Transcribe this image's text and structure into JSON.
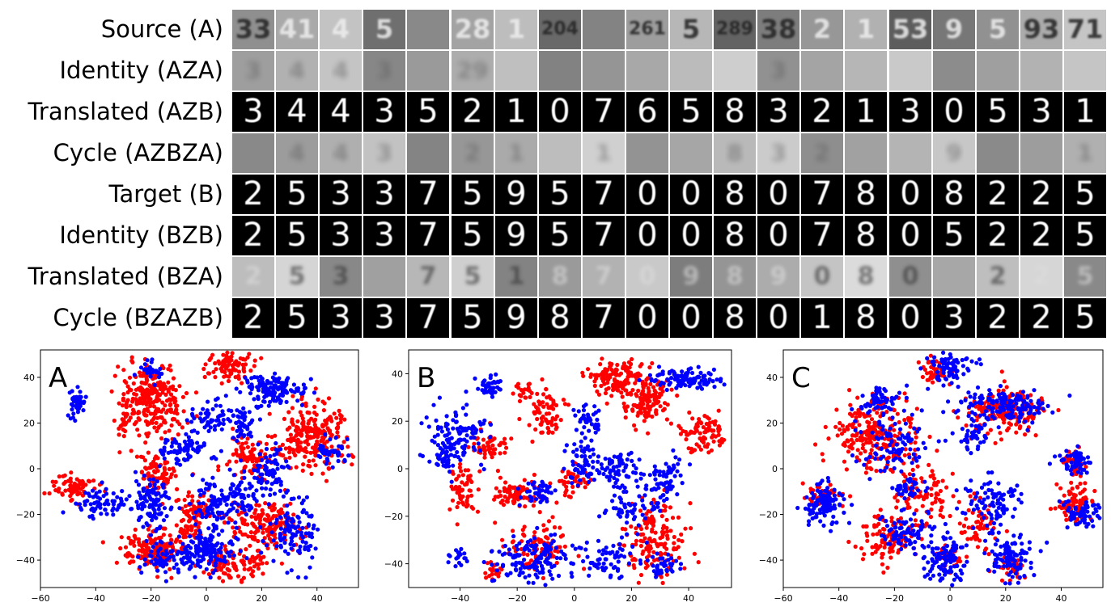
{
  "figure": {
    "rows": [
      {
        "key": "source_a",
        "label": "Source (A)",
        "style": "svhn",
        "digits": [
          "33",
          "41",
          "4",
          "5",
          "",
          "28",
          "1",
          "204",
          "",
          "261",
          "5",
          "289",
          "38",
          "2",
          "1",
          "53",
          "9",
          "5",
          "93",
          "71"
        ]
      },
      {
        "key": "identity_aza",
        "label": "Identity (AZA)",
        "style": "blur",
        "digits": [
          "3",
          "4",
          "4",
          "3",
          "",
          "29",
          "",
          "",
          "",
          "",
          "",
          "",
          "3",
          "",
          "",
          "",
          "",
          "",
          "",
          ""
        ]
      },
      {
        "key": "translated_azb",
        "label": "Translated (AZB)",
        "style": "mnist",
        "digits": [
          "3",
          "4",
          "4",
          "3",
          "5",
          "2",
          "1",
          "0",
          "7",
          "6",
          "5",
          "8",
          "3",
          "2",
          "1",
          "3",
          "0",
          "5",
          "3",
          "1"
        ]
      },
      {
        "key": "cycle_azbza",
        "label": "Cycle (AZBZA)",
        "style": "blur",
        "digits": [
          "",
          "4",
          "4",
          "3",
          "",
          "2",
          "1",
          "",
          "1",
          "",
          "",
          "8",
          "3",
          "2",
          "",
          "",
          "9",
          "",
          "",
          "1"
        ]
      },
      {
        "key": "target_b",
        "label": "Target (B)",
        "style": "mnist",
        "digits": [
          "2",
          "5",
          "3",
          "3",
          "7",
          "5",
          "9",
          "5",
          "7",
          "0",
          "0",
          "8",
          "0",
          "7",
          "8",
          "0",
          "8",
          "2",
          "2",
          "5"
        ]
      },
      {
        "key": "identity_bzb",
        "label": "Identity (BZB)",
        "style": "mnist",
        "digits": [
          "2",
          "5",
          "3",
          "3",
          "7",
          "5",
          "9",
          "5",
          "7",
          "0",
          "0",
          "8",
          "0",
          "7",
          "8",
          "0",
          "5",
          "2",
          "2",
          "5"
        ]
      },
      {
        "key": "translated_bza",
        "label": "Translated (BZA)",
        "style": "svhn_faded",
        "digits": [
          "2",
          "5",
          "3",
          "",
          "7",
          "5",
          "1",
          "8",
          "7",
          "0",
          "9",
          "8",
          "9",
          "0",
          "8",
          "0",
          "",
          "2",
          "2",
          "5"
        ]
      },
      {
        "key": "cycle_bzazb",
        "label": "Cycle (BZAZB)",
        "style": "mnist",
        "digits": [
          "2",
          "5",
          "3",
          "3",
          "7",
          "5",
          "9",
          "8",
          "7",
          "0",
          "0",
          "8",
          "0",
          "1",
          "8",
          "0",
          "3",
          "2",
          "2",
          "5"
        ]
      }
    ]
  },
  "chart_data": [
    {
      "type": "scatter",
      "title": "",
      "panel_label": "A",
      "xlim": [
        -60,
        55
      ],
      "ylim": [
        -52,
        52
      ],
      "xticks": [
        "−60",
        "−40",
        "−20",
        "0",
        "20",
        "40"
      ],
      "yticks": [
        "−40",
        "−20",
        "0",
        "20",
        "40"
      ],
      "xtick_values": [
        -60,
        -40,
        -20,
        0,
        20,
        40
      ],
      "ytick_values": [
        -40,
        -20,
        0,
        20,
        40
      ],
      "grid": false,
      "series": [
        {
          "color": "#ff0000",
          "clusters": [
            [
              -48,
              -8,
              4,
              3,
              70
            ],
            [
              -20,
              30,
              6,
              8,
              260
            ],
            [
              -18,
              -2,
              3,
              4,
              80
            ],
            [
              -20,
              -35,
              5,
              4,
              170
            ],
            [
              -5,
              -20,
              3,
              6,
              90
            ],
            [
              8,
              45,
              4,
              4,
              90
            ],
            [
              15,
              5,
              4,
              5,
              80
            ],
            [
              10,
              -42,
              6,
              4,
              100
            ],
            [
              22,
              -25,
              7,
              5,
              170
            ],
            [
              38,
              15,
              7,
              7,
              250
            ],
            [
              -28,
              20,
              2,
              3,
              20
            ]
          ]
        },
        {
          "color": "#0000ff",
          "clusters": [
            [
              -47,
              29,
              2,
              3,
              40
            ],
            [
              -38,
              -15,
              5,
              3,
              70
            ],
            [
              -20,
              43,
              2,
              2,
              30
            ],
            [
              -20,
              -15,
              3,
              6,
              100
            ],
            [
              -8,
              8,
              5,
              3,
              70
            ],
            [
              2,
              22,
              4,
              3,
              60
            ],
            [
              14,
              20,
              3,
              3,
              40
            ],
            [
              22,
              -2,
              4,
              5,
              80
            ],
            [
              0,
              -36,
              6,
              4,
              140
            ],
            [
              2,
              -15,
              4,
              6,
              80
            ],
            [
              25,
              35,
              6,
              3,
              130
            ],
            [
              32,
              -28,
              5,
              8,
              110
            ],
            [
              45,
              8,
              3,
              3,
              40
            ],
            [
              -15,
              -40,
              5,
              4,
              60
            ],
            [
              12,
              -12,
              5,
              5,
              50
            ]
          ]
        }
      ]
    },
    {
      "type": "scatter",
      "title": "",
      "panel_label": "B",
      "xlim": [
        -58,
        55
      ],
      "ylim": [
        -50,
        50
      ],
      "xticks": [
        "−40",
        "−20",
        "0",
        "20",
        "40"
      ],
      "yticks": [
        "−40",
        "−20",
        "0",
        "20",
        "40"
      ],
      "xtick_values": [
        -40,
        -20,
        0,
        20,
        40
      ],
      "ytick_values": [
        -40,
        -20,
        0,
        20,
        40
      ],
      "grid": false,
      "series": [
        {
          "color": "#ff0000",
          "clusters": [
            [
              -40,
              -8,
              3,
              5,
              60
            ],
            [
              -30,
              10,
              3,
              3,
              50
            ],
            [
              -20,
              -10,
              5,
              3,
              80
            ],
            [
              -10,
              25,
              3,
              6,
              70
            ],
            [
              15,
              38,
              5,
              4,
              130
            ],
            [
              25,
              28,
              4,
              5,
              120
            ],
            [
              45,
              15,
              4,
              4,
              80
            ],
            [
              -28,
              -42,
              2,
              2,
              20
            ],
            [
              -12,
              -32,
              5,
              5,
              90
            ],
            [
              28,
              -30,
              5,
              8,
              150
            ],
            [
              0,
              -5,
              3,
              3,
              40
            ],
            [
              -18,
              32,
              2,
              2,
              20
            ]
          ]
        },
        {
          "color": "#0000ff",
          "clusters": [
            [
              -42,
              15,
              5,
              6,
              110
            ],
            [
              -30,
              35,
              2,
              2,
              40
            ],
            [
              -40,
              -37,
              2,
              2,
              20
            ],
            [
              -15,
              -38,
              7,
              5,
              140
            ],
            [
              -12,
              -10,
              3,
              3,
              40
            ],
            [
              5,
              20,
              3,
              3,
              40
            ],
            [
              3,
              5,
              3,
              5,
              60
            ],
            [
              15,
              0,
              5,
              4,
              70
            ],
            [
              32,
              -5,
              3,
              5,
              60
            ],
            [
              20,
              -15,
              5,
              5,
              60
            ],
            [
              38,
              38,
              7,
              2,
              100
            ],
            [
              12,
              -38,
              5,
              4,
              60
            ],
            [
              30,
              -40,
              4,
              3,
              40
            ],
            [
              -45,
              5,
              2,
              3,
              30
            ]
          ]
        }
      ]
    },
    {
      "type": "scatter",
      "title": "",
      "panel_label": "C",
      "xlim": [
        -60,
        55
      ],
      "ylim": [
        -52,
        52
      ],
      "xticks": [
        "−60",
        "−40",
        "−20",
        "0",
        "20",
        "40"
      ],
      "yticks": [
        "−40",
        "−20",
        "0",
        "20",
        "40"
      ],
      "xtick_values": [
        -60,
        -40,
        -20,
        0,
        20,
        40
      ],
      "ytick_values": [
        -40,
        -20,
        0,
        20,
        40
      ],
      "grid": false,
      "series": [
        {
          "color": "#ff0000",
          "clusters": [
            [
              -28,
              15,
              8,
              7,
              220
            ],
            [
              -5,
              42,
              3,
              3,
              40
            ],
            [
              20,
              25,
              7,
              5,
              170
            ],
            [
              -22,
              -30,
              5,
              5,
              100
            ],
            [
              -10,
              -10,
              5,
              6,
              90
            ],
            [
              45,
              -15,
              4,
              4,
              80
            ],
            [
              45,
              2,
              2,
              3,
              30
            ],
            [
              -45,
              -12,
              3,
              3,
              40
            ],
            [
              10,
              -25,
              4,
              5,
              60
            ],
            [
              22,
              -42,
              3,
              3,
              40
            ],
            [
              0,
              -38,
              3,
              3,
              30
            ]
          ]
        },
        {
          "color": "#0000ff",
          "clusters": [
            [
              -45,
              -15,
              4,
              5,
              120
            ],
            [
              -25,
              30,
              4,
              3,
              60
            ],
            [
              -20,
              10,
              6,
              5,
              90
            ],
            [
              0,
              45,
              4,
              4,
              80
            ],
            [
              20,
              28,
              8,
              4,
              160
            ],
            [
              8,
              15,
              3,
              3,
              40
            ],
            [
              45,
              3,
              3,
              3,
              60
            ],
            [
              48,
              -20,
              4,
              3,
              60
            ],
            [
              15,
              -15,
              5,
              5,
              90
            ],
            [
              22,
              -38,
              4,
              5,
              100
            ],
            [
              -2,
              -40,
              4,
              5,
              100
            ],
            [
              -15,
              -28,
              5,
              4,
              80
            ],
            [
              -15,
              -8,
              3,
              3,
              40
            ]
          ]
        }
      ]
    }
  ]
}
